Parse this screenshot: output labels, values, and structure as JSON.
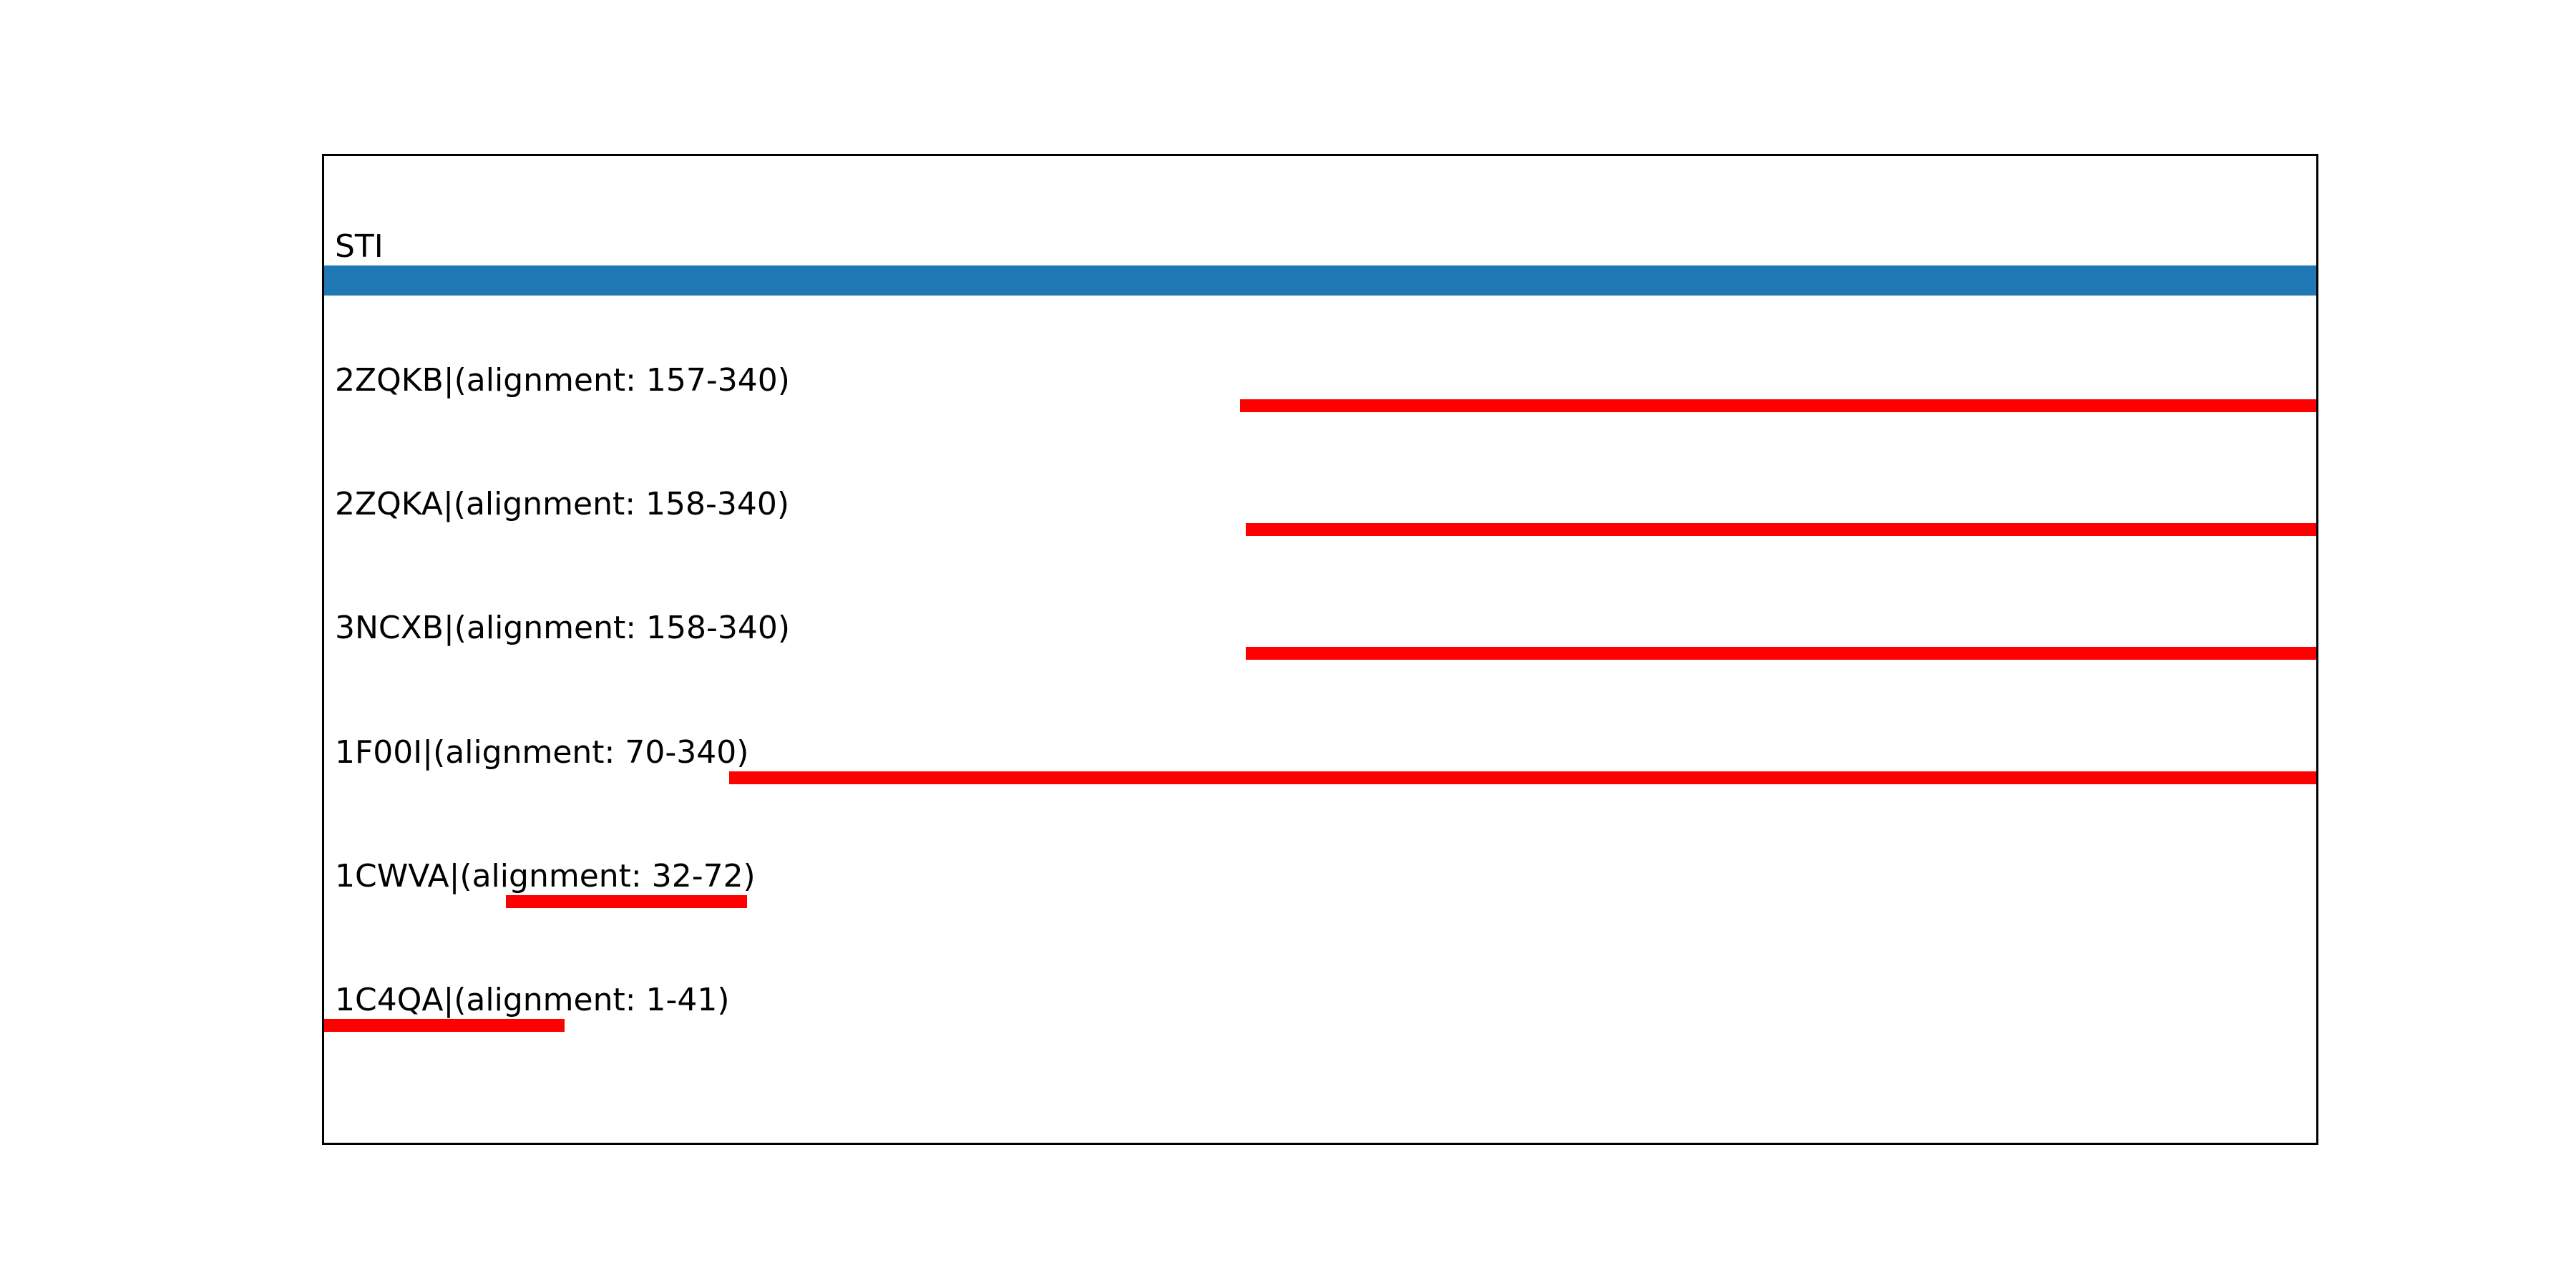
{
  "figure": {
    "background_color": "#ffffff",
    "plot_border_color": "#000000",
    "text_color": "#000000"
  },
  "chart_data": {
    "type": "bar",
    "subtype": "sequence-alignment-coverage",
    "orientation": "horizontal",
    "title": "",
    "xlabel": "",
    "ylabel": "",
    "grid": false,
    "legend": null,
    "xlim": [
      1,
      340
    ],
    "query": {
      "name": "STI",
      "start": 1,
      "end": 340,
      "color": "#1f77b4"
    },
    "hit_color": "#ff0000",
    "hits": [
      {
        "name": "2ZQKB",
        "label": "2ZQKB|(alignment: 157-340)",
        "start": 157,
        "end": 340
      },
      {
        "name": "2ZQKA",
        "label": "2ZQKA|(alignment: 158-340)",
        "start": 158,
        "end": 340
      },
      {
        "name": "3NCXB",
        "label": "3NCXB|(alignment: 158-340)",
        "start": 158,
        "end": 340
      },
      {
        "name": "1F00I",
        "label": "1F00I|(alignment: 70-340)",
        "start": 70,
        "end": 340
      },
      {
        "name": "1CWVA",
        "label": "1CWVA|(alignment: 32-72)",
        "start": 32,
        "end": 72
      },
      {
        "name": "1C4QA",
        "label": "1C4QA|(alignment: 1-41)",
        "start": 1,
        "end": 41
      }
    ]
  }
}
